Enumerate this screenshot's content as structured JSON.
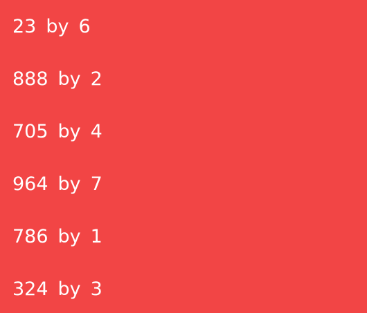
{
  "items": [
    {
      "number": "23",
      "connector": "by",
      "factor": "6"
    },
    {
      "number": "888",
      "connector": "by",
      "factor": "2"
    },
    {
      "number": "705",
      "connector": "by",
      "factor": "4"
    },
    {
      "number": "964",
      "connector": "by",
      "factor": "7"
    },
    {
      "number": "786",
      "connector": "by",
      "factor": "1"
    },
    {
      "number": "324",
      "connector": "by",
      "factor": "3"
    }
  ],
  "colors": {
    "background": "#f24545",
    "text": "#ffffff"
  }
}
